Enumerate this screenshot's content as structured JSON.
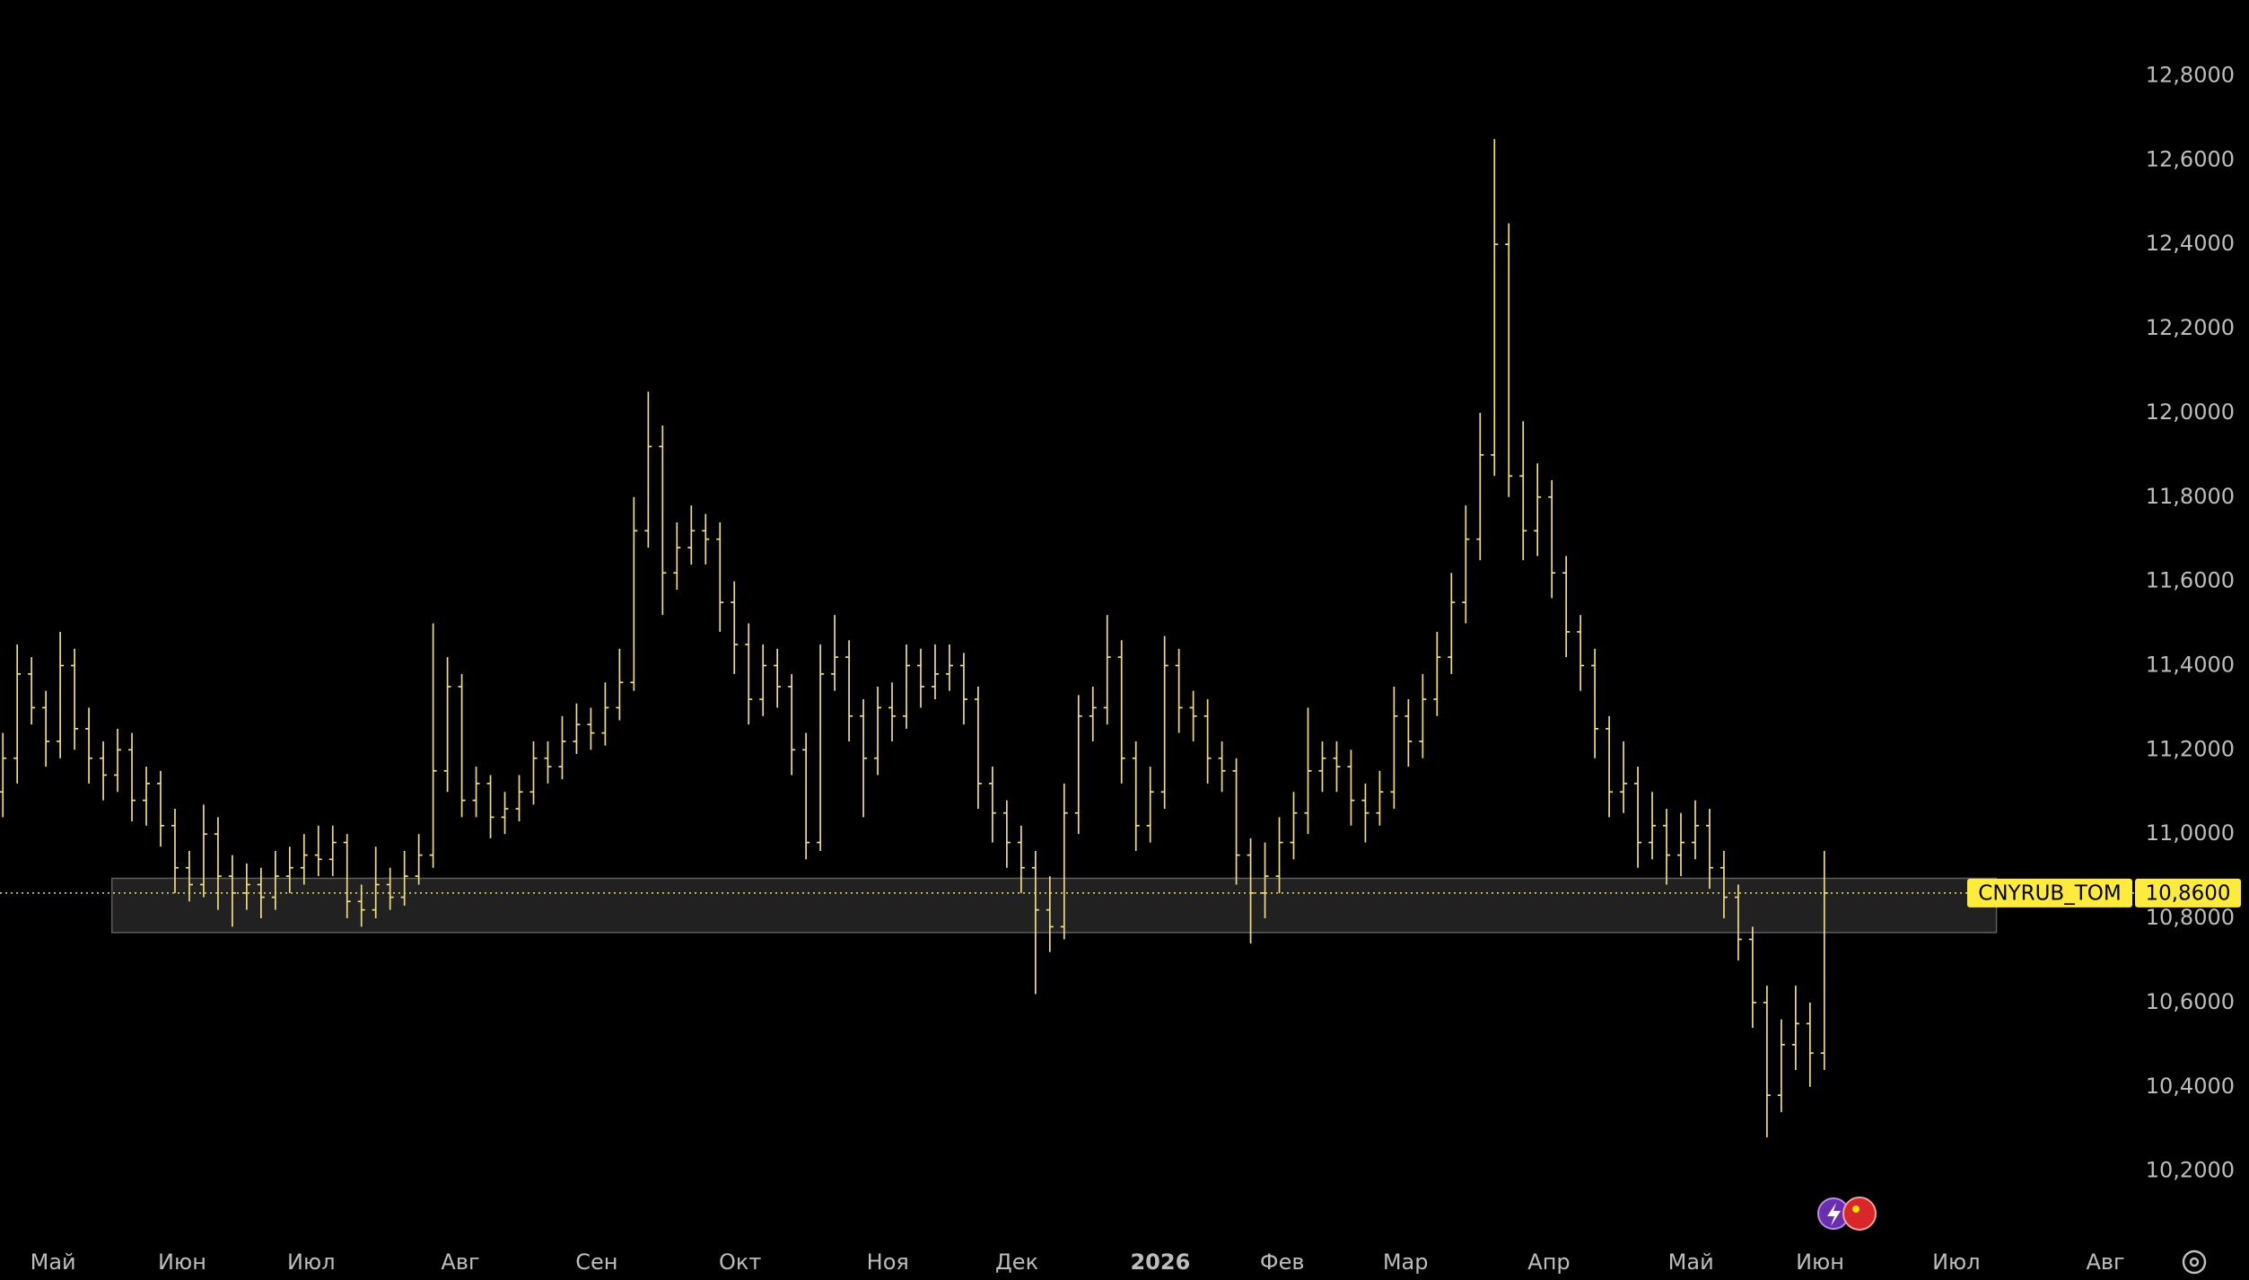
{
  "chart_data": {
    "type": "ohlc",
    "series": [
      {
        "name": "CNYRUB_TOM",
        "color": "#f0dc7e",
        "ohlc": [
          [
            11.1,
            11.24,
            11.04,
            11.18
          ],
          [
            11.18,
            11.45,
            11.12,
            11.38
          ],
          [
            11.38,
            11.42,
            11.26,
            11.3
          ],
          [
            11.3,
            11.34,
            11.16,
            11.22
          ],
          [
            11.22,
            11.48,
            11.18,
            11.4
          ],
          [
            11.4,
            11.44,
            11.2,
            11.25
          ],
          [
            11.25,
            11.3,
            11.12,
            11.18
          ],
          [
            11.18,
            11.22,
            11.08,
            11.14
          ],
          [
            11.14,
            11.25,
            11.1,
            11.2
          ],
          [
            11.2,
            11.24,
            11.03,
            11.08
          ],
          [
            11.08,
            11.16,
            11.02,
            11.12
          ],
          [
            11.12,
            11.15,
            10.97,
            11.02
          ],
          [
            11.02,
            11.06,
            10.86,
            10.92
          ],
          [
            10.92,
            10.96,
            10.84,
            10.88
          ],
          [
            10.88,
            11.07,
            10.85,
            11.0
          ],
          [
            11.0,
            11.04,
            10.82,
            10.9
          ],
          [
            10.9,
            10.95,
            10.78,
            10.86
          ],
          [
            10.86,
            10.93,
            10.82,
            10.88
          ],
          [
            10.88,
            10.92,
            10.8,
            10.85
          ],
          [
            10.85,
            10.96,
            10.82,
            10.9
          ],
          [
            10.9,
            10.97,
            10.86,
            10.92
          ],
          [
            10.92,
            11.0,
            10.88,
            10.95
          ],
          [
            10.95,
            11.02,
            10.9,
            10.94
          ],
          [
            10.94,
            11.02,
            10.9,
            10.98
          ],
          [
            10.98,
            11.0,
            10.8,
            10.84
          ],
          [
            10.84,
            10.88,
            10.78,
            10.82
          ],
          [
            10.82,
            10.97,
            10.8,
            10.88
          ],
          [
            10.88,
            10.92,
            10.82,
            10.85
          ],
          [
            10.85,
            10.96,
            10.83,
            10.9
          ],
          [
            10.9,
            11.0,
            10.88,
            10.95
          ],
          [
            10.95,
            11.5,
            10.92,
            11.15
          ],
          [
            11.15,
            11.42,
            11.1,
            11.35
          ],
          [
            11.35,
            11.38,
            11.04,
            11.08
          ],
          [
            11.08,
            11.16,
            11.04,
            11.12
          ],
          [
            11.12,
            11.14,
            10.99,
            11.04
          ],
          [
            11.04,
            11.1,
            11.0,
            11.06
          ],
          [
            11.06,
            11.14,
            11.03,
            11.1
          ],
          [
            11.1,
            11.22,
            11.07,
            11.18
          ],
          [
            11.18,
            11.22,
            11.12,
            11.16
          ],
          [
            11.16,
            11.28,
            11.13,
            11.22
          ],
          [
            11.22,
            11.31,
            11.19,
            11.26
          ],
          [
            11.26,
            11.3,
            11.2,
            11.24
          ],
          [
            11.24,
            11.36,
            11.21,
            11.3
          ],
          [
            11.3,
            11.44,
            11.27,
            11.36
          ],
          [
            11.36,
            11.8,
            11.34,
            11.72
          ],
          [
            11.72,
            12.05,
            11.68,
            11.92
          ],
          [
            11.92,
            11.97,
            11.52,
            11.62
          ],
          [
            11.62,
            11.74,
            11.58,
            11.68
          ],
          [
            11.68,
            11.78,
            11.64,
            11.72
          ],
          [
            11.72,
            11.76,
            11.64,
            11.7
          ],
          [
            11.7,
            11.74,
            11.48,
            11.55
          ],
          [
            11.55,
            11.6,
            11.38,
            11.45
          ],
          [
            11.45,
            11.5,
            11.26,
            11.32
          ],
          [
            11.32,
            11.45,
            11.28,
            11.4
          ],
          [
            11.4,
            11.44,
            11.3,
            11.35
          ],
          [
            11.35,
            11.38,
            11.14,
            11.2
          ],
          [
            11.2,
            11.24,
            10.94,
            10.98
          ],
          [
            10.98,
            11.45,
            10.96,
            11.38
          ],
          [
            11.38,
            11.52,
            11.34,
            11.42
          ],
          [
            11.42,
            11.46,
            11.22,
            11.28
          ],
          [
            11.28,
            11.32,
            11.04,
            11.18
          ],
          [
            11.18,
            11.35,
            11.14,
            11.3
          ],
          [
            11.3,
            11.36,
            11.22,
            11.28
          ],
          [
            11.28,
            11.45,
            11.25,
            11.4
          ],
          [
            11.4,
            11.44,
            11.3,
            11.35
          ],
          [
            11.35,
            11.45,
            11.32,
            11.38
          ],
          [
            11.38,
            11.45,
            11.34,
            11.4
          ],
          [
            11.4,
            11.43,
            11.26,
            11.32
          ],
          [
            11.32,
            11.35,
            11.06,
            11.12
          ],
          [
            11.12,
            11.16,
            10.98,
            11.05
          ],
          [
            11.05,
            11.08,
            10.92,
            10.98
          ],
          [
            10.98,
            11.02,
            10.86,
            10.92
          ],
          [
            10.92,
            10.96,
            10.62,
            10.82
          ],
          [
            10.82,
            10.9,
            10.72,
            10.78
          ],
          [
            10.78,
            11.12,
            10.75,
            11.05
          ],
          [
            11.05,
            11.33,
            11.0,
            11.28
          ],
          [
            11.28,
            11.35,
            11.22,
            11.3
          ],
          [
            11.3,
            11.52,
            11.26,
            11.42
          ],
          [
            11.42,
            11.46,
            11.12,
            11.18
          ],
          [
            11.18,
            11.22,
            10.96,
            11.02
          ],
          [
            11.02,
            11.16,
            10.98,
            11.1
          ],
          [
            11.1,
            11.47,
            11.06,
            11.4
          ],
          [
            11.4,
            11.44,
            11.24,
            11.3
          ],
          [
            11.3,
            11.34,
            11.22,
            11.28
          ],
          [
            11.28,
            11.32,
            11.12,
            11.18
          ],
          [
            11.18,
            11.22,
            11.1,
            11.15
          ],
          [
            11.15,
            11.18,
            10.88,
            10.95
          ],
          [
            10.95,
            10.99,
            10.74,
            10.86
          ],
          [
            10.86,
            10.98,
            10.8,
            10.9
          ],
          [
            10.9,
            11.04,
            10.86,
            10.98
          ],
          [
            10.98,
            11.1,
            10.94,
            11.05
          ],
          [
            11.05,
            11.3,
            11.0,
            11.15
          ],
          [
            11.15,
            11.22,
            11.1,
            11.18
          ],
          [
            11.18,
            11.22,
            11.1,
            11.16
          ],
          [
            11.16,
            11.2,
            11.02,
            11.08
          ],
          [
            11.08,
            11.12,
            10.98,
            11.05
          ],
          [
            11.05,
            11.15,
            11.02,
            11.1
          ],
          [
            11.1,
            11.35,
            11.06,
            11.28
          ],
          [
            11.28,
            11.32,
            11.16,
            11.22
          ],
          [
            11.22,
            11.38,
            11.18,
            11.32
          ],
          [
            11.32,
            11.48,
            11.28,
            11.42
          ],
          [
            11.42,
            11.62,
            11.38,
            11.55
          ],
          [
            11.55,
            11.78,
            11.5,
            11.7
          ],
          [
            11.7,
            12.0,
            11.65,
            11.9
          ],
          [
            11.9,
            12.65,
            11.85,
            12.4
          ],
          [
            12.4,
            12.45,
            11.8,
            11.85
          ],
          [
            11.85,
            11.98,
            11.65,
            11.72
          ],
          [
            11.72,
            11.88,
            11.66,
            11.8
          ],
          [
            11.8,
            11.84,
            11.56,
            11.62
          ],
          [
            11.62,
            11.66,
            11.42,
            11.48
          ],
          [
            11.48,
            11.52,
            11.34,
            11.4
          ],
          [
            11.4,
            11.44,
            11.18,
            11.25
          ],
          [
            11.25,
            11.28,
            11.04,
            11.1
          ],
          [
            11.1,
            11.22,
            11.05,
            11.12
          ],
          [
            11.12,
            11.16,
            10.92,
            10.98
          ],
          [
            10.98,
            11.1,
            10.94,
            11.02
          ],
          [
            11.02,
            11.06,
            10.88,
            10.95
          ],
          [
            10.95,
            11.05,
            10.9,
            10.98
          ],
          [
            10.98,
            11.08,
            10.94,
            11.02
          ],
          [
            11.02,
            11.06,
            10.87,
            10.92
          ],
          [
            10.92,
            10.96,
            10.8,
            10.85
          ],
          [
            10.85,
            10.88,
            10.7,
            10.75
          ],
          [
            10.75,
            10.78,
            10.54,
            10.6
          ],
          [
            10.6,
            10.64,
            10.28,
            10.38
          ],
          [
            10.38,
            10.56,
            10.34,
            10.5
          ],
          [
            10.5,
            10.64,
            10.44,
            10.55
          ],
          [
            10.55,
            10.6,
            10.4,
            10.48
          ],
          [
            10.48,
            10.96,
            10.44,
            10.86
          ]
        ]
      }
    ],
    "xlim": [
      -0.2,
      148.6
    ],
    "xticks": [
      {
        "value": 3.5,
        "label": "Май"
      },
      {
        "value": 12.5,
        "label": "Июн"
      },
      {
        "value": 21.5,
        "label": "Июл"
      },
      {
        "value": 31.9,
        "label": "Авг"
      },
      {
        "value": 41.4,
        "label": "Сен"
      },
      {
        "value": 51.4,
        "label": "Окт"
      },
      {
        "value": 61.7,
        "label": "Ноя"
      },
      {
        "value": 70.7,
        "label": "Дек"
      },
      {
        "value": 80.7,
        "label": "2026"
      },
      {
        "value": 89.2,
        "label": "Фев"
      },
      {
        "value": 97.8,
        "label": "Мар"
      },
      {
        "value": 107.8,
        "label": "Апр"
      },
      {
        "value": 117.7,
        "label": "Май"
      },
      {
        "value": 126.7,
        "label": "Июн"
      },
      {
        "value": 136.2,
        "label": "Июл"
      },
      {
        "value": 146.6,
        "label": "Авг"
      }
    ],
    "ylim": [
      10.05,
      12.98
    ],
    "yticks": [
      {
        "value": 10.2,
        "label": "10,2000"
      },
      {
        "value": 10.4,
        "label": "10,4000"
      },
      {
        "value": 10.6,
        "label": "10,6000"
      },
      {
        "value": 10.8,
        "label": "10,8000"
      },
      {
        "value": 11,
        "label": "11,0000"
      },
      {
        "value": 11.2,
        "label": "11,2000"
      },
      {
        "value": 11.4,
        "label": "11,4000"
      },
      {
        "value": 11.6,
        "label": "11,6000"
      },
      {
        "value": 11.8,
        "label": "11,8000"
      },
      {
        "value": 12,
        "label": "12,0000"
      },
      {
        "value": 12.2,
        "label": "12,2000"
      },
      {
        "value": 12.4,
        "label": "12,4000"
      },
      {
        "value": 12.6,
        "label": "12,6000"
      },
      {
        "value": 12.8,
        "label": "12,8000"
      }
    ],
    "last_price": {
      "value": 10.86,
      "label": "10,8600"
    },
    "zone": {
      "x": [
        7.6,
        139
      ],
      "y": [
        10.766,
        10.895
      ]
    }
  }
}
